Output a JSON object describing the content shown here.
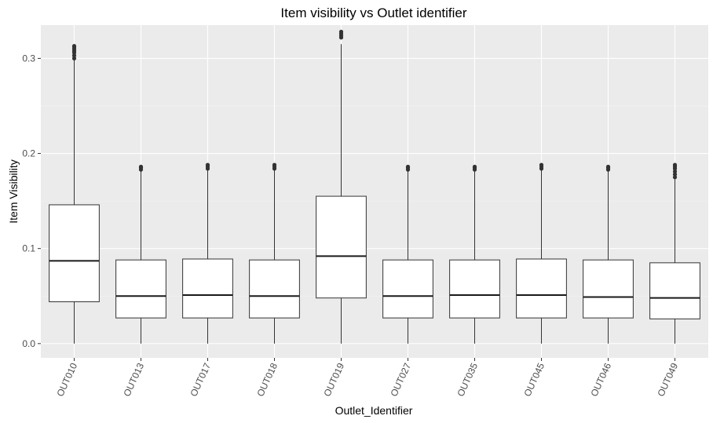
{
  "chart_data": {
    "type": "boxplot",
    "title": "Item visibility vs Outlet identifier",
    "xlabel": "Outlet_Identifier",
    "ylabel": "Item Visibility",
    "ylim": [
      -0.015,
      0.335
    ],
    "y_ticks": [
      0.0,
      0.1,
      0.2,
      0.3
    ],
    "y_tick_labels": [
      "0.0",
      "0.1",
      "0.2",
      "0.3"
    ],
    "grid": true,
    "categories": [
      "OUT010",
      "OUT013",
      "OUT017",
      "OUT018",
      "OUT019",
      "OUT027",
      "OUT035",
      "OUT045",
      "OUT046",
      "OUT049"
    ],
    "boxes": [
      {
        "min": 0.0,
        "q1": 0.044,
        "median": 0.087,
        "q3": 0.146,
        "max": 0.3,
        "outliers": [
          0.3,
          0.303,
          0.306,
          0.308,
          0.31,
          0.312,
          0.313
        ]
      },
      {
        "min": 0.0,
        "q1": 0.027,
        "median": 0.05,
        "q3": 0.088,
        "max": 0.182,
        "outliers": [
          0.183,
          0.185,
          0.186
        ]
      },
      {
        "min": 0.0,
        "q1": 0.027,
        "median": 0.051,
        "q3": 0.089,
        "max": 0.183,
        "outliers": [
          0.184,
          0.186,
          0.188
        ]
      },
      {
        "min": 0.0,
        "q1": 0.027,
        "median": 0.05,
        "q3": 0.088,
        "max": 0.183,
        "outliers": [
          0.184,
          0.186,
          0.188
        ]
      },
      {
        "min": 0.0,
        "q1": 0.048,
        "median": 0.092,
        "q3": 0.155,
        "max": 0.315,
        "outliers": [
          0.322,
          0.324,
          0.326,
          0.328
        ]
      },
      {
        "min": 0.0,
        "q1": 0.027,
        "median": 0.05,
        "q3": 0.088,
        "max": 0.182,
        "outliers": [
          0.183,
          0.185,
          0.186
        ]
      },
      {
        "min": 0.0,
        "q1": 0.027,
        "median": 0.051,
        "q3": 0.088,
        "max": 0.182,
        "outliers": [
          0.183,
          0.185,
          0.186
        ]
      },
      {
        "min": 0.0,
        "q1": 0.027,
        "median": 0.051,
        "q3": 0.089,
        "max": 0.183,
        "outliers": [
          0.184,
          0.186,
          0.188
        ]
      },
      {
        "min": 0.0,
        "q1": 0.027,
        "median": 0.049,
        "q3": 0.088,
        "max": 0.182,
        "outliers": [
          0.183,
          0.185,
          0.186
        ]
      },
      {
        "min": 0.0,
        "q1": 0.026,
        "median": 0.048,
        "q3": 0.085,
        "max": 0.173,
        "outliers": [
          0.175,
          0.178,
          0.181,
          0.184,
          0.186,
          0.188
        ]
      }
    ]
  }
}
